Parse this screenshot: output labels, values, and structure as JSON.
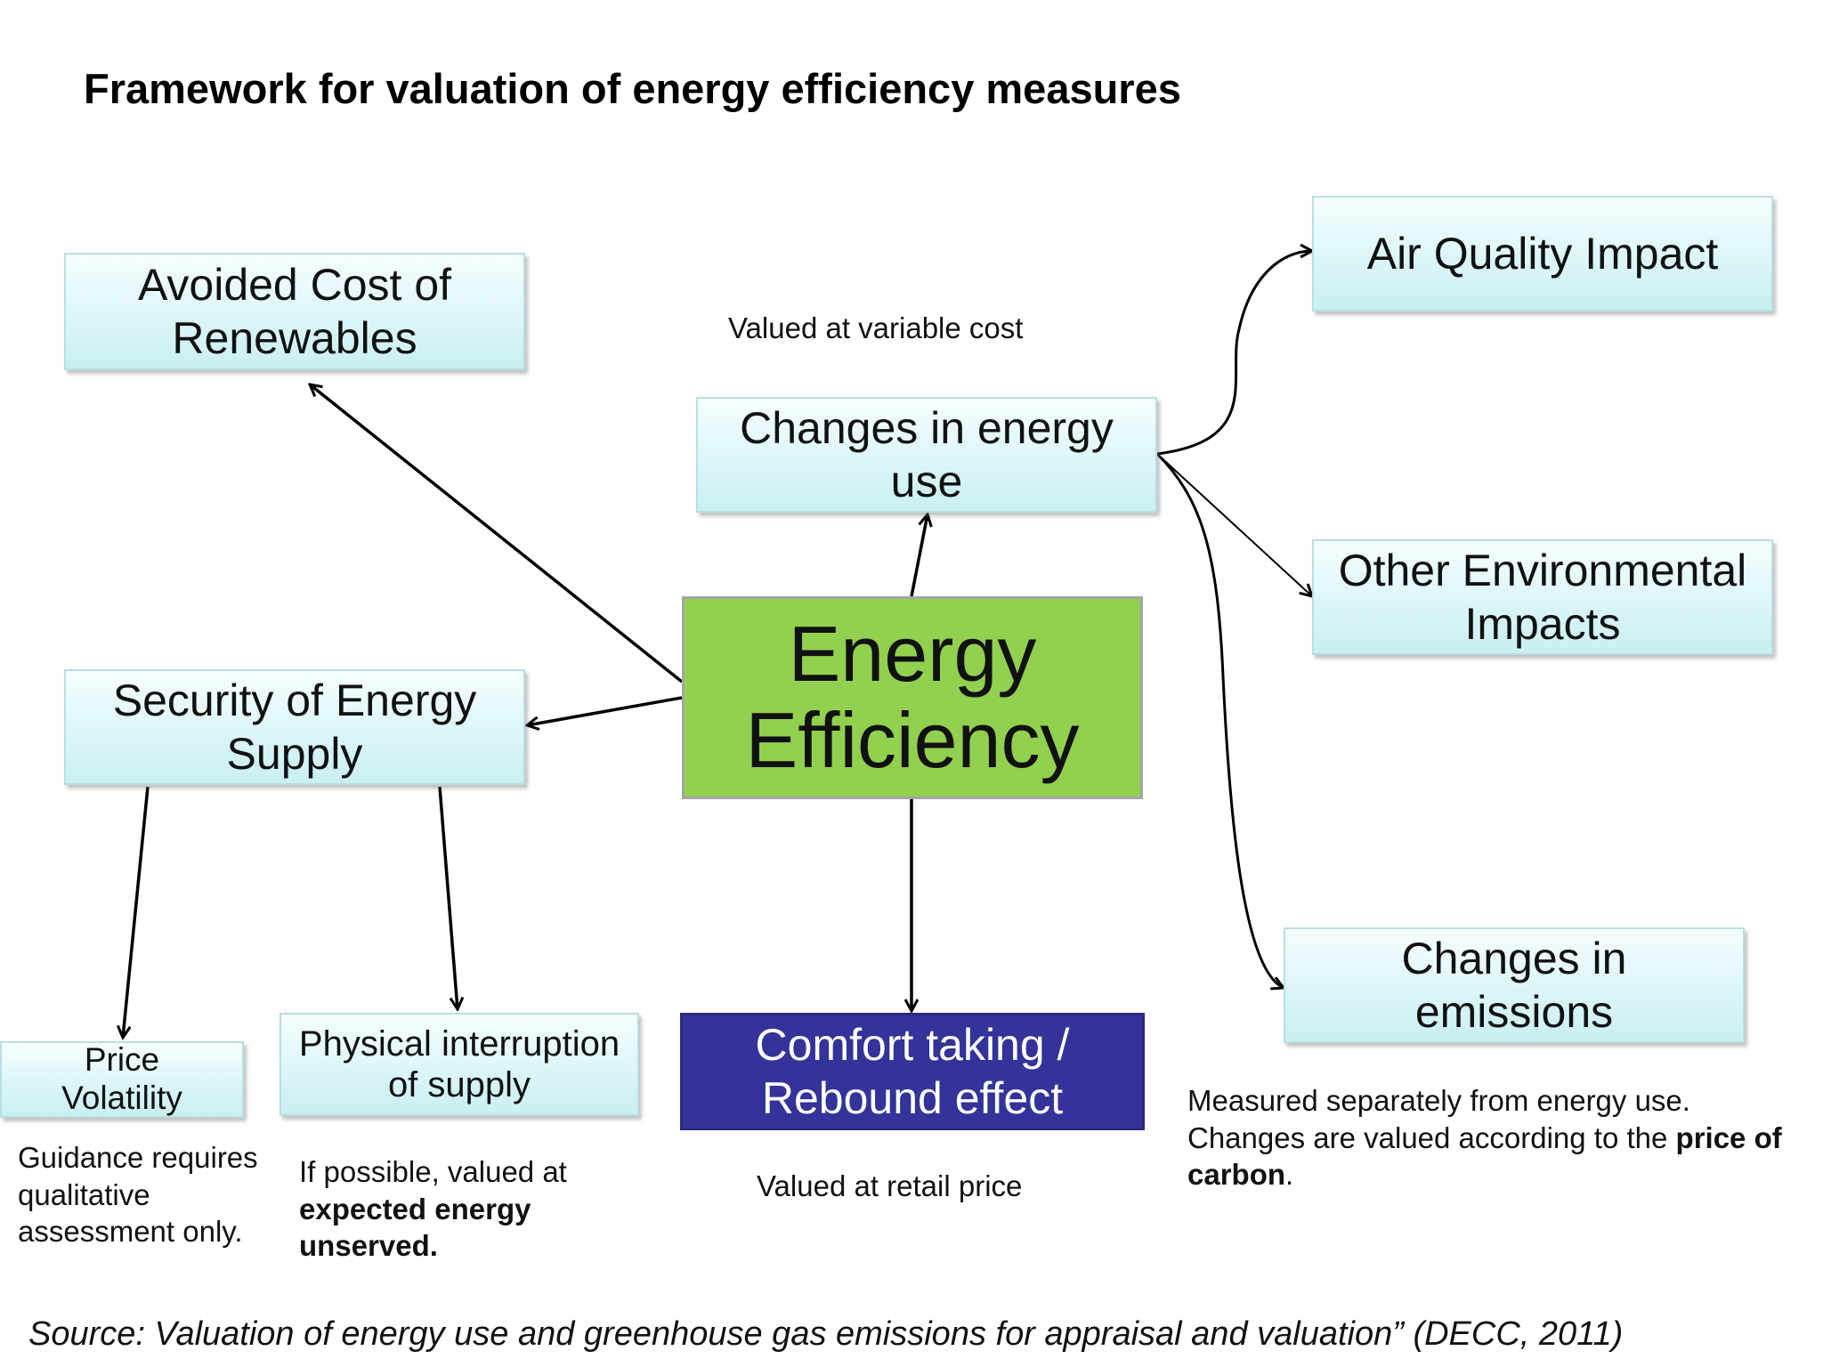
{
  "title": "Framework for valuation of energy efficiency measures",
  "boxes": {
    "avoided_cost": [
      "Avoided Cost of",
      "Renewables"
    ],
    "changes_energy_use": [
      "Changes in energy",
      "use"
    ],
    "air_quality": [
      "Air Quality Impact"
    ],
    "other_env": [
      "Other Environmental",
      "Impacts"
    ],
    "energy_efficiency": [
      "Energy",
      "Efficiency"
    ],
    "security_supply": [
      "Security of Energy",
      "Supply"
    ],
    "changes_emissions": [
      "Changes in",
      "emissions"
    ],
    "price_volatility": [
      "Price",
      "Volatility"
    ],
    "physical_interruption": [
      "Physical interruption",
      "of supply"
    ],
    "comfort_taking": [
      "Comfort taking /",
      "Rebound effect"
    ]
  },
  "notes": {
    "variable_cost": "Valued at variable cost",
    "guidance": [
      "Guidance requires",
      "qualitative",
      "assessment only."
    ],
    "if_possible": {
      "line1": "If possible, valued at",
      "bold_lines": [
        "expected energy",
        "unserved."
      ]
    },
    "retail_price": "Valued at retail price",
    "measured": {
      "line1": "Measured separately from energy use.",
      "line2_prefix": "Changes are valued according to the ",
      "line2_bold": "price of",
      "line3_bold": "carbon",
      "line3_suffix": "."
    }
  },
  "source": "Source: Valuation of energy use and greenhouse gas emissions for appraisal and valuation” (DECC, 2011)",
  "colors": {
    "box_fill": "#dcf6f8",
    "box_border": "#b8dfe3",
    "energy_efficiency_fill": "#92d050",
    "comfort_fill": "#333399",
    "comfort_text": "#ffffff",
    "arrow": "#000000"
  }
}
